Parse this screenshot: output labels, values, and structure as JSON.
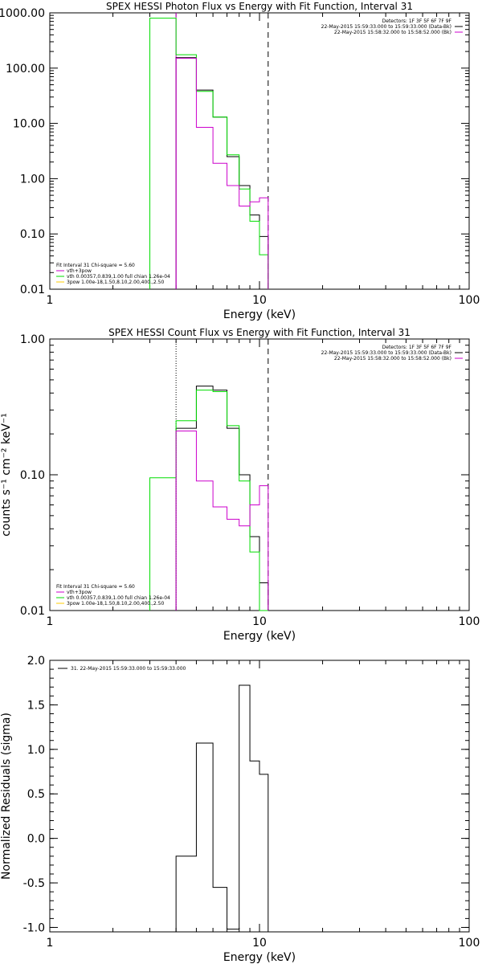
{
  "chart_data": [
    {
      "type": "line",
      "title": "SPEX HESSI Photon Flux vs Energy with Fit Function, Interval 31",
      "xlabel": "Energy (keV)",
      "ylabel": "",
      "x_scale": "log",
      "y_scale": "log",
      "xlim": [
        1,
        100
      ],
      "ylim": [
        0.01,
        1000
      ],
      "x_ticks": [
        "1",
        "10",
        "100"
      ],
      "y_ticks": [
        "0.01",
        "0.10",
        "1.00",
        "10.00",
        "100.00",
        "1000.00"
      ],
      "legend_right": [
        "Detectors: 1F 3F 5F 6F 7F 9F",
        "22-May-2015 15:59:33.000 to 15:59:33.000 (Data-Bk)",
        "22-May-2015 15:58:32.000 to 15:58:52.000 (Bk)"
      ],
      "legend_left": [
        "Fit Interval 31   Chi-square = 5.60",
        "vth+3pow",
        "vth 0.00357,0.839,1.00  full chian 1.26e-04",
        "3pow 1.00e-18,1.50,8.10,2.00,400.,2.50"
      ],
      "vlines": [
        {
          "x": 4,
          "style": "solid",
          "color": "#cc00cc"
        },
        {
          "x": 11,
          "style": "dashed",
          "color": "#000000"
        }
      ],
      "edges": [
        3,
        4,
        5,
        6,
        7,
        8,
        9,
        10,
        11
      ],
      "series": [
        {
          "color": "#000000",
          "values": [
            null,
            155,
            40,
            13,
            2.5,
            0.75,
            0.22,
            0.09
          ]
        },
        {
          "color": "#00dd00",
          "values": [
            800,
            175,
            38,
            13,
            2.7,
            0.65,
            0.17,
            0.042
          ]
        },
        {
          "color": "#cc00cc",
          "values": [
            null,
            150,
            8.5,
            1.9,
            0.75,
            0.32,
            0.38,
            0.45
          ]
        }
      ]
    },
    {
      "type": "line",
      "title": "SPEX HESSI Count Flux vs Energy with Fit Function, Interval 31",
      "xlabel": "Energy (keV)",
      "ylabel": "counts s⁻¹ cm⁻² keV⁻¹",
      "x_scale": "log",
      "y_scale": "log",
      "xlim": [
        1,
        100
      ],
      "ylim": [
        0.01,
        1
      ],
      "x_ticks": [
        "1",
        "10",
        "100"
      ],
      "y_ticks": [
        "0.01",
        "0.10",
        "1.00"
      ],
      "legend_right": [
        "Detectors: 1F 3F 5F 6F 7F 9F",
        "22-May-2015 15:59:33.000 to 15:59:33.000 (Data-Bk)",
        "22-May-2015 15:58:32.000 to 15:58:52.000 (Bk)"
      ],
      "legend_left": [
        "Fit Interval 31   Chi-square = 5.60",
        "vth+3pow",
        "vth 0.00357,0.839,1.00  full chian 1.26e-04",
        "3pow 1.00e-18,1.50,8.10,2.00,400.,2.50"
      ],
      "vlines": [
        {
          "x": 4,
          "style": "dotted",
          "color": "#000000"
        },
        {
          "x": 11,
          "style": "dashed",
          "color": "#000000"
        }
      ],
      "edges": [
        3,
        4,
        5,
        6,
        7,
        8,
        9,
        10,
        11
      ],
      "series": [
        {
          "color": "#000000",
          "values": [
            null,
            0.22,
            0.45,
            0.42,
            0.22,
            0.1,
            0.035,
            0.016
          ]
        },
        {
          "color": "#00dd00",
          "values": [
            0.095,
            0.25,
            0.42,
            0.41,
            0.23,
            0.09,
            0.027,
            0.006
          ]
        },
        {
          "color": "#cc00cc",
          "values": [
            null,
            0.21,
            0.09,
            0.058,
            0.047,
            0.042,
            0.06,
            0.083
          ]
        }
      ]
    },
    {
      "type": "line",
      "title": "",
      "xlabel": "Energy (keV)",
      "ylabel": "Normalized Residuals (sigma)",
      "x_scale": "log",
      "y_scale": "linear",
      "xlim": [
        1,
        100
      ],
      "ylim": [
        -1.05,
        2
      ],
      "x_ticks": [
        "1",
        "10",
        "100"
      ],
      "y_ticks": [
        "-1.0",
        "-0.5",
        "0.0",
        "0.5",
        "1.0",
        "1.5",
        "2.0"
      ],
      "legend_right": [],
      "legend_left": [],
      "legend_top_left": "31. 22-May-2015 15:59:33.000 to 15:59:33.000",
      "vlines": [],
      "edges": [
        4,
        5,
        6,
        7,
        8,
        9,
        10,
        11
      ],
      "series": [
        {
          "color": "#000000",
          "values": [
            -0.2,
            1.07,
            -0.55,
            -1.02,
            1.72,
            0.87,
            0.72
          ]
        }
      ]
    }
  ]
}
